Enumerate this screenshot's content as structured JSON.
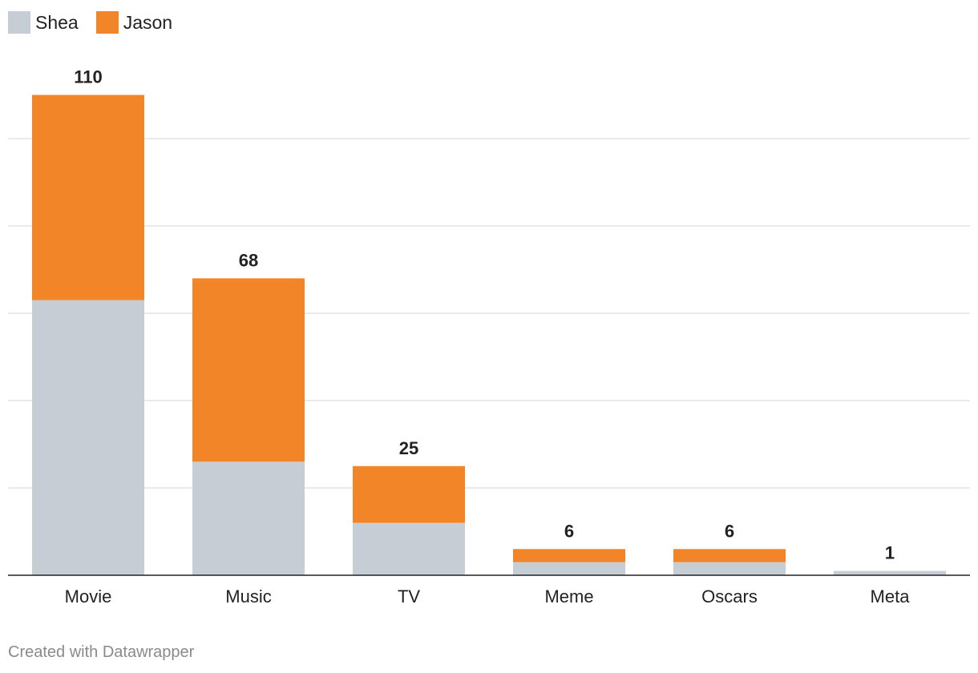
{
  "chart_data": {
    "type": "bar",
    "stacked": true,
    "categories": [
      "Movie",
      "Music",
      "TV",
      "Meme",
      "Oscars",
      "Meta"
    ],
    "series": [
      {
        "name": "Shea",
        "color": "#c6cdd4",
        "values": [
          63,
          26,
          12,
          3,
          3,
          1
        ]
      },
      {
        "name": "Jason",
        "color": "#f28527",
        "values": [
          47,
          42,
          13,
          3,
          3,
          0
        ]
      }
    ],
    "totals": [
      "110",
      "68",
      "25",
      "6",
      "6",
      "1"
    ],
    "ylim": [
      0,
      120
    ],
    "grid": true,
    "legend_position": "top-left"
  },
  "footer": {
    "credit": "Created with Datawrapper"
  }
}
